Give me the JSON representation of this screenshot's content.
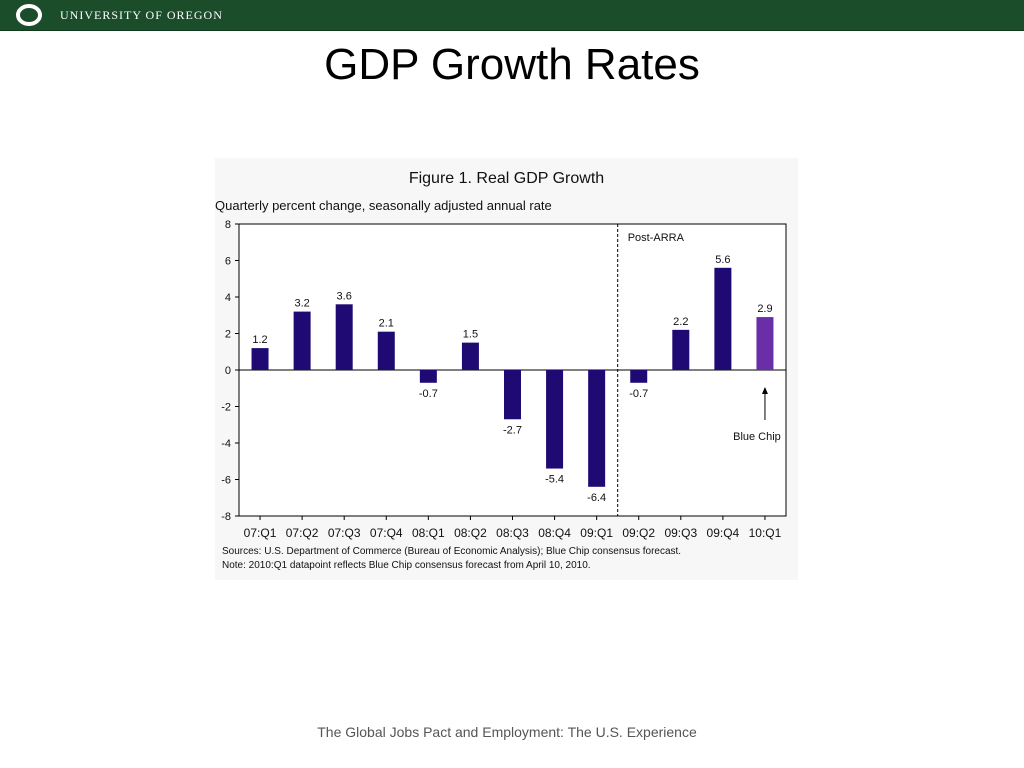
{
  "header": {
    "university_name": "UNIVERSITY OF OREGON",
    "logo_icon": "o-logo-icon",
    "brand_color": "#1b4d2b"
  },
  "slide": {
    "title": "GDP Growth Rates",
    "footer": "The Global Jobs Pact and Employment: The U.S. Experience"
  },
  "chart_data": {
    "type": "bar",
    "title": "Figure 1.  Real GDP Growth",
    "subtitle": "Quarterly percent change, seasonally adjusted annual rate",
    "categories": [
      "07:Q1",
      "07:Q2",
      "07:Q3",
      "07:Q4",
      "08:Q1",
      "08:Q2",
      "08:Q3",
      "08:Q4",
      "09:Q1",
      "09:Q2",
      "09:Q3",
      "09:Q4",
      "10:Q1"
    ],
    "values": [
      1.2,
      3.2,
      3.6,
      2.1,
      -0.7,
      1.5,
      -2.7,
      -5.4,
      -6.4,
      -0.7,
      2.2,
      5.6,
      2.9
    ],
    "data_labels": [
      "1.2",
      "3.2",
      "3.6",
      "2.1",
      "-0.7",
      "1.5",
      "-2.7",
      "-5.4",
      "-6.4",
      "-0.7",
      "2.2",
      "5.6",
      "2.9"
    ],
    "ylim": [
      -8,
      8
    ],
    "yticks": [
      8,
      6,
      4,
      2,
      0,
      -2,
      -4,
      -6,
      -8
    ],
    "grid": false,
    "bar_color": "#1f0a73",
    "forecast_bar_color": "#6a2fa8",
    "forecast_index": 12,
    "divider_after_index": 8,
    "divider_label": "Post-ARRA",
    "forecast_annotation": "Blue Chip",
    "notes": [
      "Sources:  U.S. Department of Commerce (Bureau of Economic Analysis); Blue Chip consensus forecast.",
      "Note:  2010:Q1 datapoint reflects Blue Chip consensus forecast from April 10, 2010."
    ]
  }
}
